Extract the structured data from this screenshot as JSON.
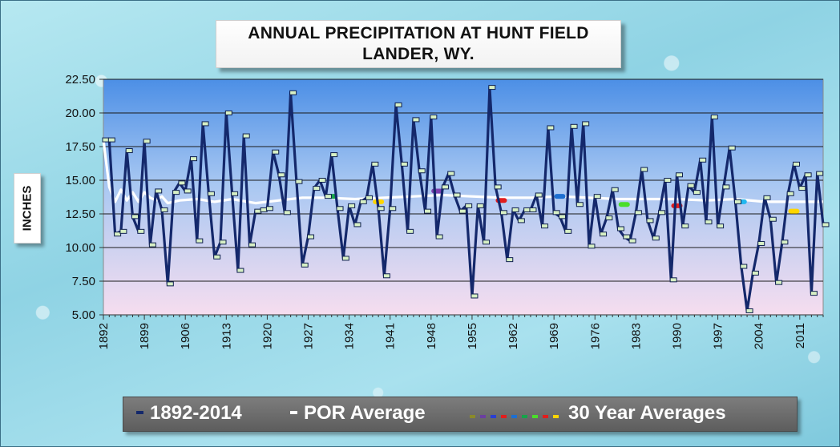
{
  "page": {
    "title_line1": "ANNUAL PRECIPITATION AT HUNT FIELD",
    "title_line2": "LANDER, WY."
  },
  "colors": {
    "annual_line": "#14286b",
    "annual_marker_fill": "#d7f0c4",
    "por_line": "#ffffff",
    "plot_top": "#4c8fe6",
    "plot_bottom": "#f6ddef",
    "legend_bg": "#6b6b6b"
  },
  "chart_data": {
    "type": "line",
    "title": "ANNUAL PRECIPITATION AT HUNT FIELD LANDER, WY.",
    "xlabel": "",
    "ylabel": "INCHES",
    "ylim": [
      5.0,
      22.5
    ],
    "yticks": [
      "5.00",
      "7.50",
      "10.00",
      "12.50",
      "15.00",
      "17.50",
      "20.00",
      "22.50"
    ],
    "x_start": 1892,
    "x_end": 2015,
    "xticks": [
      1892,
      1899,
      1906,
      1913,
      1920,
      1927,
      1934,
      1941,
      1948,
      1955,
      1962,
      1969,
      1976,
      1983,
      1990,
      1997,
      2004,
      2011
    ],
    "grid": true,
    "legend_position": "bottom",
    "series": [
      {
        "name": "1892-2014",
        "color": "#14286b",
        "x": [
          1892,
          1893,
          1894,
          1895,
          1896,
          1897,
          1898,
          1899,
          1900,
          1901,
          1902,
          1903,
          1904,
          1905,
          1906,
          1907,
          1908,
          1909,
          1910,
          1911,
          1912,
          1913,
          1914,
          1915,
          1916,
          1917,
          1918,
          1919,
          1920,
          1921,
          1922,
          1923,
          1924,
          1925,
          1926,
          1927,
          1928,
          1929,
          1930,
          1931,
          1932,
          1933,
          1934,
          1935,
          1936,
          1937,
          1938,
          1939,
          1940,
          1941,
          1942,
          1943,
          1944,
          1945,
          1946,
          1947,
          1948,
          1949,
          1950,
          1951,
          1952,
          1953,
          1954,
          1955,
          1956,
          1957,
          1958,
          1959,
          1960,
          1961,
          1962,
          1963,
          1964,
          1965,
          1966,
          1967,
          1968,
          1969,
          1970,
          1971,
          1972,
          1973,
          1974,
          1975,
          1976,
          1977,
          1978,
          1979,
          1980,
          1981,
          1982,
          1983,
          1984,
          1985,
          1986,
          1987,
          1988,
          1989,
          1990,
          1991,
          1992,
          1993,
          1994,
          1995,
          1996,
          1997,
          1998,
          1999,
          2000,
          2001,
          2002,
          2003,
          2004,
          2005,
          2006,
          2007,
          2008,
          2009,
          2010,
          2011,
          2012,
          2013,
          2014,
          2015
        ],
        "values": [
          18.0,
          18.0,
          11.0,
          11.2,
          17.2,
          12.3,
          11.2,
          17.9,
          10.2,
          14.2,
          12.8,
          7.3,
          14.1,
          14.8,
          14.2,
          16.6,
          10.5,
          19.2,
          14.0,
          9.3,
          10.4,
          20.0,
          14.0,
          8.3,
          18.3,
          10.2,
          12.7,
          12.8,
          12.9,
          17.1,
          15.4,
          12.6,
          21.5,
          14.9,
          8.7,
          10.8,
          14.4,
          15.0,
          13.8,
          16.9,
          12.9,
          9.2,
          13.1,
          11.7,
          13.4,
          13.7,
          16.2,
          12.9,
          7.9,
          12.9,
          20.6,
          16.2,
          11.2,
          19.5,
          15.7,
          12.7,
          19.7,
          10.8,
          14.5,
          15.5,
          13.9,
          12.7,
          13.1,
          6.4,
          13.1,
          10.4,
          21.9,
          14.5,
          12.6,
          9.1,
          12.8,
          12.0,
          12.8,
          12.8,
          13.9,
          11.6,
          18.9,
          12.6,
          12.3,
          11.2,
          19.0,
          13.2,
          19.2,
          10.1,
          13.8,
          11.0,
          12.2,
          14.3,
          11.4,
          10.8,
          10.5,
          12.6,
          15.8,
          12.0,
          10.7,
          12.6,
          15.0,
          7.6,
          15.4,
          11.6,
          14.6,
          14.1,
          16.5,
          11.9,
          19.7,
          11.6,
          14.5,
          17.4,
          13.4,
          8.6,
          5.3,
          8.1,
          10.3,
          13.7,
          12.1,
          7.4,
          10.4,
          14.0,
          16.2,
          14.4,
          15.4,
          6.6,
          15.5,
          11.7
        ]
      },
      {
        "name": "POR Average",
        "color": "#ffffff",
        "x": [
          1892,
          1893,
          1894,
          1895,
          1896,
          1897,
          1898,
          1899,
          1900,
          1901,
          1902,
          1903,
          1905,
          1908,
          1911,
          1914,
          1918,
          1922,
          1926,
          1930,
          1935,
          1940,
          1945,
          1950,
          1955,
          1960,
          1965,
          1970,
          1975,
          1980,
          1985,
          1990,
          1995,
          2000,
          2005,
          2010,
          2015
        ],
        "values": [
          18.0,
          14.5,
          13.4,
          14.3,
          13.5,
          14.1,
          13.4,
          14.1,
          13.7,
          13.5,
          13.8,
          13.3,
          13.5,
          13.6,
          13.4,
          13.6,
          13.3,
          13.5,
          13.7,
          13.7,
          13.6,
          13.7,
          13.8,
          13.9,
          13.8,
          13.7,
          13.7,
          13.8,
          13.7,
          13.6,
          13.6,
          13.6,
          13.5,
          13.6,
          13.4,
          13.4,
          13.4
        ]
      }
    ],
    "thirty_year_averages": [
      {
        "x": 1931,
        "value": 13.8,
        "color": "#16a34a"
      },
      {
        "x": 1939,
        "value": 13.4,
        "color": "#ffd600"
      },
      {
        "x": 1949,
        "value": 14.2,
        "color": "#7b3fb0"
      },
      {
        "x": 1960,
        "value": 13.5,
        "color": "#e11d1d"
      },
      {
        "x": 1970,
        "value": 13.8,
        "color": "#1d6fd1"
      },
      {
        "x": 1981,
        "value": 13.2,
        "color": "#4ade2a"
      },
      {
        "x": 1990,
        "value": 13.1,
        "color": "#e11d1d"
      },
      {
        "x": 2001,
        "value": 13.4,
        "color": "#22b8f0"
      },
      {
        "x": 2010,
        "value": 12.7,
        "color": "#ffd600"
      }
    ]
  },
  "legend": {
    "series1_label": "1892-2014",
    "series1_color": "#14286b",
    "series2_label": "POR Average",
    "series2_color": "#ffffff",
    "series3_label": "30 Year Averages",
    "series3_dash_colors": [
      "#8a8a2a",
      "#6b3fa0",
      "#2a3fd1",
      "#e11d1d",
      "#1d6fd1",
      "#16a34a",
      "#4ade2a",
      "#e11d1d",
      "#ffd600"
    ]
  }
}
